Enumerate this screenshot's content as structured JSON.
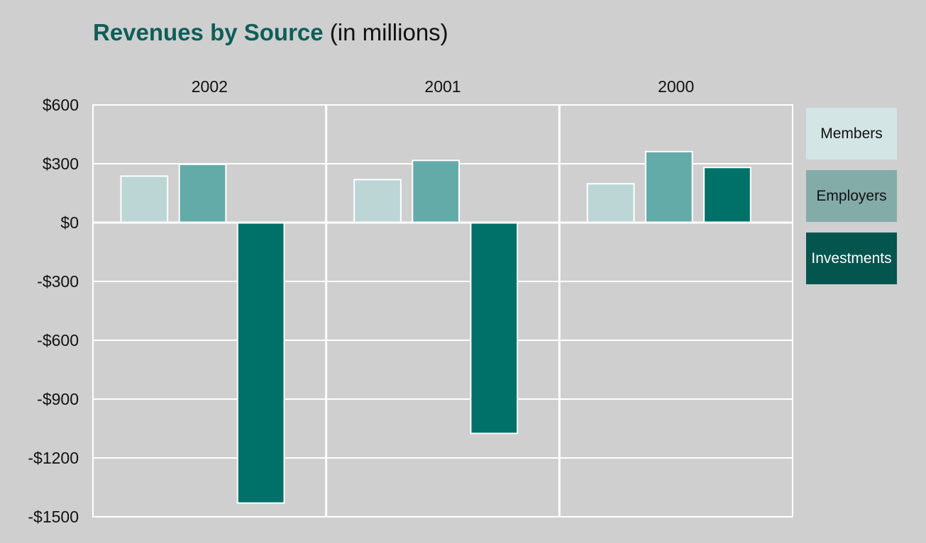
{
  "title": {
    "main": "Revenues by Source",
    "sub": " (in millions)"
  },
  "colors": {
    "background": "#cfcfcf",
    "grid": "#ffffff",
    "Members": "#bcd6d6",
    "Employers": "#63aba8",
    "Investments": "#007168",
    "title": "#0d5e58"
  },
  "chart_data": {
    "type": "bar",
    "title": "Revenues by Source (in millions)",
    "xlabel": "",
    "ylabel": "",
    "categories": [
      "2002",
      "2001",
      "2000"
    ],
    "series": [
      {
        "name": "Members",
        "values": [
          237,
          219,
          198
        ]
      },
      {
        "name": "Employers",
        "values": [
          297,
          317,
          362
        ]
      },
      {
        "name": "Investments",
        "values": [
          -1430,
          -1075,
          281
        ]
      }
    ],
    "ylim": [
      -1500,
      600
    ],
    "yticks": [
      600,
      300,
      0,
      -300,
      -600,
      -900,
      -1200,
      -1500
    ],
    "ytick_labels": [
      "$600",
      "$300",
      "$0",
      "-$300",
      "-$600",
      "-$900",
      "-$1200",
      "-$1500"
    ],
    "grid": true,
    "legend_placement": "right"
  },
  "legend": [
    {
      "label": "Members",
      "bg": "#d3e5e5",
      "color": "#111111"
    },
    {
      "label": "Employers",
      "bg": "#83aca9",
      "color": "#111111"
    },
    {
      "label": "Investments",
      "bg": "#05554f",
      "color": "#ffffff"
    }
  ]
}
